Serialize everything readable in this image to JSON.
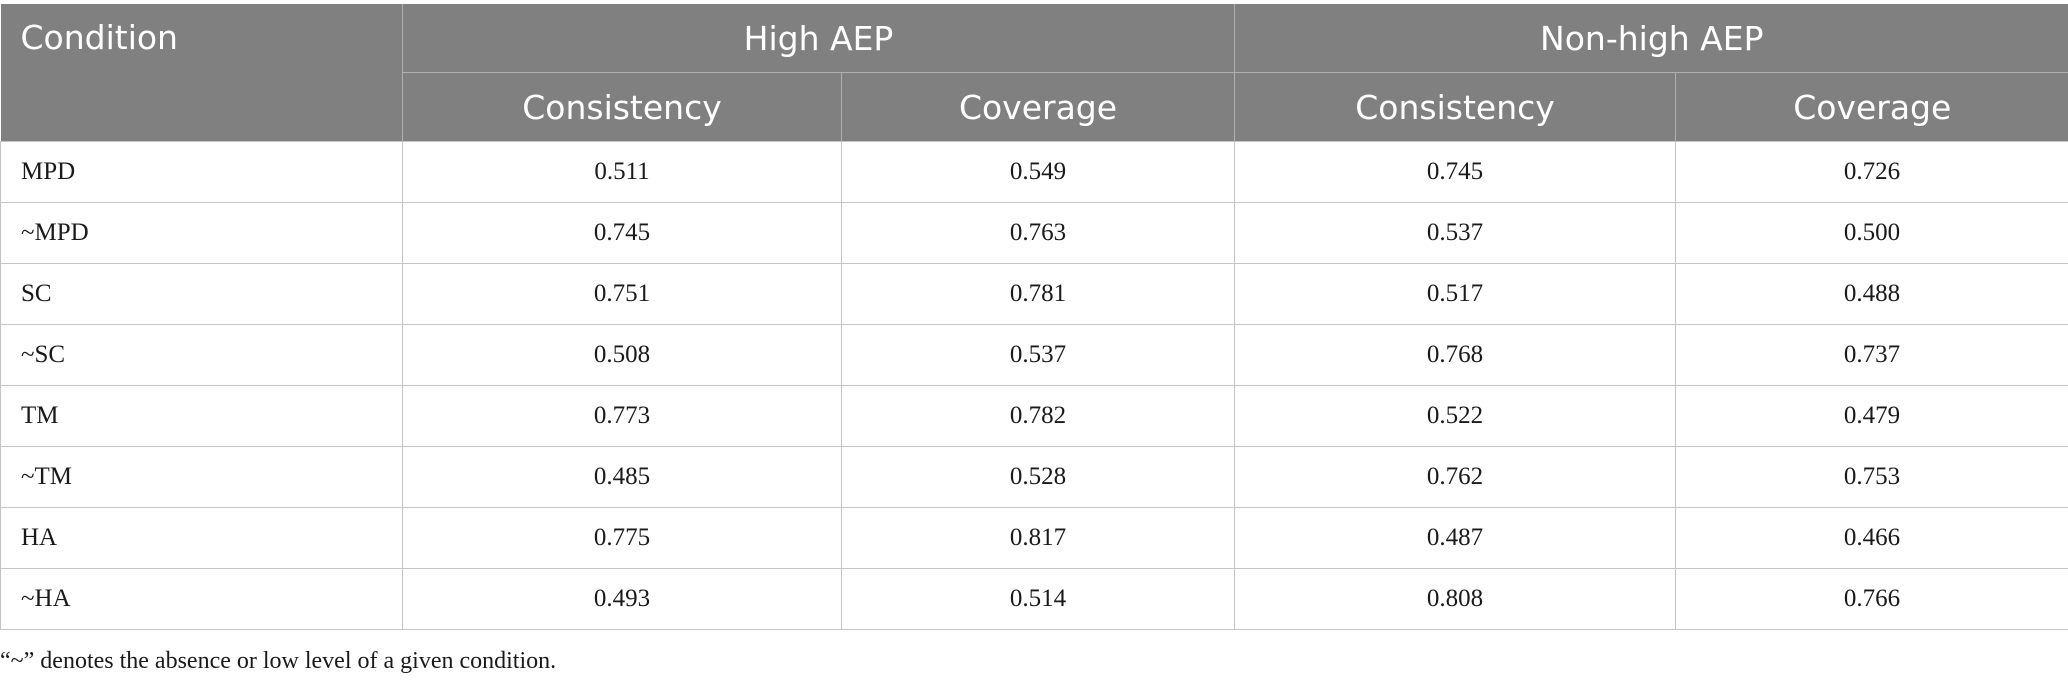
{
  "table": {
    "header": {
      "condition_label": "Condition",
      "groups": [
        "High AEP",
        "Non-high AEP"
      ],
      "subheaders": [
        "Consistency",
        "Coverage",
        "Consistency",
        "Coverage"
      ]
    },
    "rows": [
      {
        "condition": "MPD",
        "values": [
          "0.511",
          "0.549",
          "0.745",
          "0.726"
        ]
      },
      {
        "condition": "~MPD",
        "values": [
          "0.745",
          "0.763",
          "0.537",
          "0.500"
        ]
      },
      {
        "condition": "SC",
        "values": [
          "0.751",
          "0.781",
          "0.517",
          "0.488"
        ]
      },
      {
        "condition": "~SC",
        "values": [
          "0.508",
          "0.537",
          "0.768",
          "0.737"
        ]
      },
      {
        "condition": "TM",
        "values": [
          "0.773",
          "0.782",
          "0.522",
          "0.479"
        ]
      },
      {
        "condition": "~TM",
        "values": [
          "0.485",
          "0.528",
          "0.762",
          "0.753"
        ]
      },
      {
        "condition": "HA",
        "values": [
          "0.775",
          "0.817",
          "0.487",
          "0.466"
        ]
      },
      {
        "condition": "~HA",
        "values": [
          "0.493",
          "0.514",
          "0.808",
          "0.766"
        ]
      }
    ]
  },
  "footnote": "“~” denotes the absence or low level of a given condition.",
  "colors": {
    "header_bg": "#808080",
    "header_text": "#ffffff",
    "grid": "#c4c4c4"
  }
}
